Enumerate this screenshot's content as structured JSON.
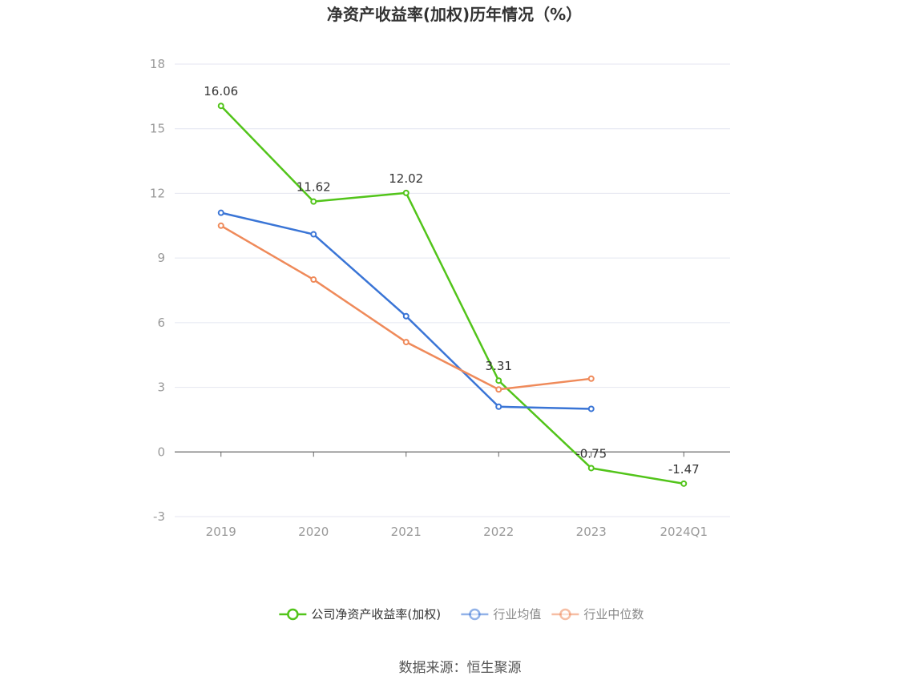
{
  "chart_data": {
    "type": "line",
    "title": "净资产收益率(加权)历年情况（%）",
    "categories": [
      "2019",
      "2020",
      "2021",
      "2022",
      "2023",
      "2024Q1"
    ],
    "ylim": [
      -3,
      18
    ],
    "yticks": [
      -3,
      0,
      3,
      6,
      9,
      12,
      15,
      18
    ],
    "grid": true,
    "legend_position": "bottom",
    "series": [
      {
        "name": "公司净资产收益率(加权)",
        "color": "#52c41a",
        "values": [
          16.06,
          11.62,
          12.02,
          3.31,
          -0.75,
          -1.47
        ],
        "labels": [
          "16.06",
          "11.62",
          "12.02",
          "3.31",
          "-0.75",
          "-1.47"
        ]
      },
      {
        "name": "行业均值",
        "color": "#3a75d6",
        "values": [
          11.1,
          10.1,
          6.3,
          2.1,
          2.0,
          null
        ]
      },
      {
        "name": "行业中位数",
        "color": "#ef8a5a",
        "values": [
          10.5,
          8.0,
          5.1,
          2.9,
          3.4,
          null
        ]
      }
    ]
  },
  "source": "数据来源：恒生聚源",
  "colors": {
    "grid": "#e4e6f0",
    "axis": "#666666",
    "legend_inactive_text": "#888888",
    "legend_active_text": "#333333"
  }
}
